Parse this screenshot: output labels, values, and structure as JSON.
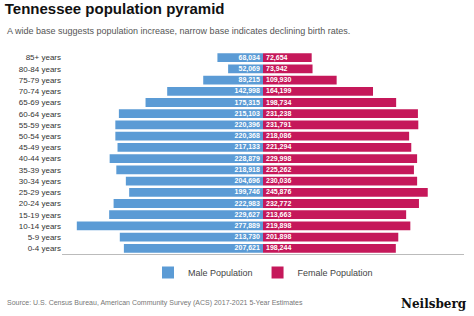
{
  "chart_data": {
    "type": "bar",
    "orientation": "horizontal",
    "title": "Tennessee population pyramid",
    "subtitle": "A wide base suggests population increase, narrow base indicates declining birth rates.",
    "annotations": [
      "Source: U.S. Census Bureau, American Community Survey (ACS) 2017-2021 5-Year Estimates",
      "Neilsberg"
    ],
    "categories": [
      "0-4 years",
      "5-9 years",
      "10-14 years",
      "15-19 years",
      "20-24 years",
      "25-29 years",
      "30-34 years",
      "35-39 years",
      "40-44 years",
      "45-49 years",
      "50-54 years",
      "55-59 years",
      "60-64 years",
      "65-69 years",
      "70-74 years",
      "75-79 years",
      "80-84 years",
      "85+ years"
    ],
    "series": [
      {
        "name": "Male Population",
        "color": "#5b9bd5",
        "values": [
          207621,
          213730,
          277889,
          229627,
          222983,
          199746,
          204696,
          218918,
          228879,
          217133,
          220368,
          220396,
          215103,
          175315,
          142998,
          89215,
          52069,
          68034
        ],
        "value_labels": [
          "207,621",
          "213,730",
          "277,889",
          "229,627",
          "222,983",
          "199,746",
          "204,696",
          "218,918",
          "228,879",
          "217,133",
          "220,368",
          "220,396",
          "215,103",
          "175,315",
          "142,998",
          "89,215",
          "52,069",
          "68,034"
        ]
      },
      {
        "name": "Female Population",
        "color": "#c5185a",
        "values": [
          198244,
          201898,
          219898,
          213663,
          232772,
          245876,
          230036,
          225262,
          229998,
          221294,
          218086,
          231791,
          231238,
          198734,
          164199,
          109930,
          73942,
          72654
        ],
        "value_labels": [
          "198,244",
          "201,898",
          "219,898",
          "213,663",
          "232,772",
          "245,876",
          "230,036",
          "225,262",
          "229,998",
          "221,294",
          "218,086",
          "231,791",
          "231,238",
          "198,734",
          "164,199",
          "109,930",
          "73,942",
          "72,654"
        ]
      }
    ],
    "xlim": [
      0,
      300000
    ],
    "tick_labels": "y",
    "data_labels": true,
    "legend": "bottom",
    "grid": false
  }
}
